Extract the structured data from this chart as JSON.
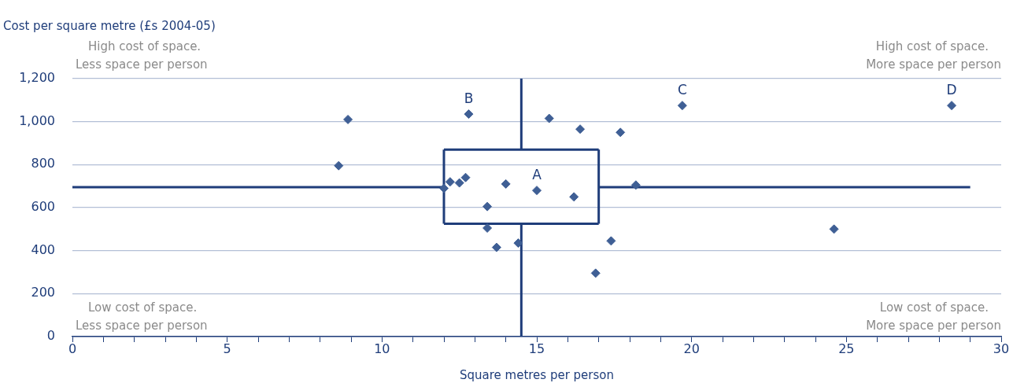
{
  "chart_data": {
    "type": "scatter",
    "ylabel": "Cost per square metre (£s 2004-05)",
    "xlabel": "Square metres per person",
    "xlim": [
      0,
      30
    ],
    "xticks": [
      0,
      {
        "value": 1,
        "label": null
      },
      {
        "value": 2,
        "label": null
      },
      {
        "value": 3,
        "label": null
      },
      {
        "value": 4,
        "label": null
      },
      5,
      {
        "value": 6,
        "label": null
      },
      {
        "value": 7,
        "label": null
      },
      {
        "value": 8,
        "label": null
      },
      {
        "value": 9,
        "label": null
      },
      10,
      {
        "value": 11,
        "label": null
      },
      {
        "value": 12,
        "label": null
      },
      {
        "value": 13,
        "label": null
      },
      {
        "value": 14,
        "label": null
      },
      15,
      {
        "value": 16,
        "label": null
      },
      {
        "value": 17,
        "label": null
      },
      {
        "value": 18,
        "label": null
      },
      {
        "value": 19,
        "label": null
      },
      20,
      {
        "value": 21,
        "label": null
      },
      {
        "value": 22,
        "label": null
      },
      {
        "value": 23,
        "label": null
      },
      {
        "value": 24,
        "label": null
      },
      25,
      {
        "value": 26,
        "label": null
      },
      {
        "value": 27,
        "label": null
      },
      {
        "value": 28,
        "label": null
      },
      {
        "value": 29,
        "label": null
      },
      30
    ],
    "ylim": [
      0,
      1200
    ],
    "yticks": [
      0,
      200,
      400,
      600,
      800,
      {
        "value": 1000,
        "label": "1,000"
      },
      {
        "value": 1200,
        "label": "1,200"
      }
    ],
    "grid": "y",
    "legend": false,
    "marker": "diamond",
    "series": [
      {
        "color": "#3f5f95",
        "x": [
          8.9,
          8.6,
          12.8,
          15.4,
          16.4,
          17.7,
          12.2,
          12.5,
          12.7,
          12.0,
          14.0,
          15.0,
          16.2,
          18.2,
          13.4,
          13.4,
          13.7,
          14.4,
          17.4,
          16.9,
          19.7,
          28.4,
          24.6
        ],
        "values": [
          1010,
          795,
          1035,
          1015,
          965,
          950,
          720,
          715,
          740,
          690,
          710,
          680,
          650,
          705,
          605,
          505,
          415,
          435,
          445,
          295,
          1075,
          1075,
          500
        ]
      },
      {
        "type": "line",
        "color": "#1f3d7a",
        "marker": "none",
        "x": [
          12,
          17
        ],
        "values": [
          525,
          525
        ]
      },
      {
        "type": "line",
        "color": "#1f3d7a",
        "marker": "none",
        "x": [
          12,
          17
        ],
        "values": [
          870,
          870
        ]
      },
      {
        "type": "line",
        "color": "#1f3d7a",
        "marker": "none",
        "x": [
          12,
          12
        ],
        "values": [
          525,
          870
        ]
      },
      {
        "type": "line",
        "color": "#1f3d7a",
        "marker": "none",
        "x": [
          17,
          17
        ],
        "values": [
          525,
          870
        ]
      },
      {
        "type": "line",
        "color": "#1f3d7a",
        "marker": "none",
        "x": [
          14.5,
          14.5
        ],
        "values": [
          870,
          1200
        ]
      },
      {
        "type": "line",
        "color": "#1f3d7a",
        "marker": "none",
        "x": [
          14.5,
          14.5
        ],
        "values": [
          0,
          525
        ]
      },
      {
        "type": "line",
        "color": "#1f3d7a",
        "marker": "none",
        "x": [
          0,
          12
        ],
        "values": [
          695,
          695
        ]
      },
      {
        "type": "line",
        "color": "#1f3d7a",
        "marker": "none",
        "x": [
          17,
          29
        ],
        "values": [
          695,
          695
        ]
      }
    ],
    "annotations": [
      "High cost of space.\nLess space per person",
      "High cost of space.\nMore space per person",
      "Low cost of space.\nLess space per person",
      "Low cost of space.\nMore space per person",
      {
        "text": "A",
        "x": 15.0,
        "y": 680
      },
      {
        "text": "B",
        "x": 12.8,
        "y": 1035
      },
      {
        "text": "C",
        "x": 19.7,
        "y": 1075
      },
      {
        "text": "D",
        "x": 28.4,
        "y": 1075
      }
    ]
  }
}
